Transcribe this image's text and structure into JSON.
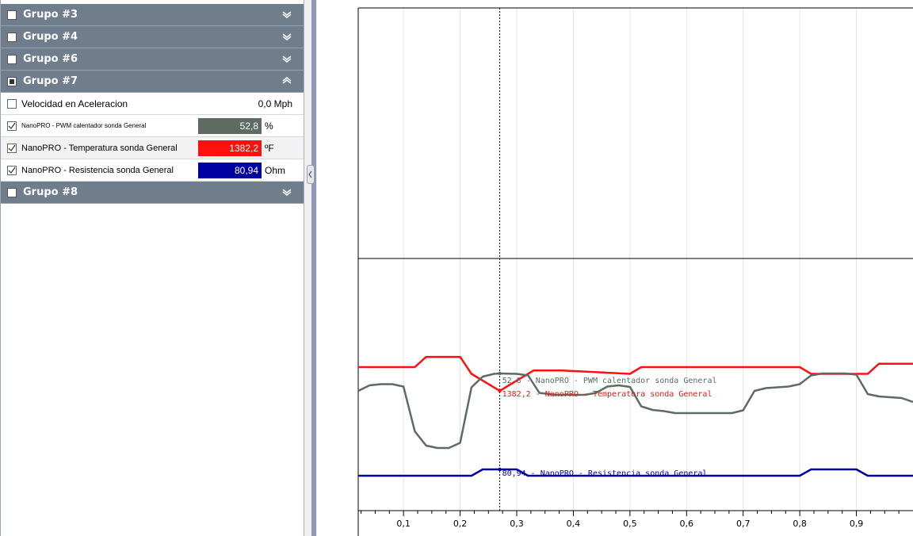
{
  "groups": {
    "g3": "Grupo #3",
    "g4": "Grupo #4",
    "g6": "Grupo #6",
    "g7": "Grupo #7",
    "g8": "Grupo #8"
  },
  "channels": [
    {
      "label": "Velocidad en Aceleracion",
      "value": "0,0",
      "unit": "Mph",
      "checked": false
    },
    {
      "label": "NanoPRO - PWM calentador sonda General",
      "value": "52,8",
      "unit": "%",
      "checked": true,
      "color": "#5d6b63"
    },
    {
      "label": "NanoPRO - Temperatura sonda General",
      "value": "1382,2",
      "unit": "ºF",
      "checked": true,
      "color": "#ff1010"
    },
    {
      "label": "NanoPRO - Resistencia sonda General",
      "value": "80,94",
      "unit": "Ohm",
      "checked": true,
      "color": "#0000a0"
    }
  ],
  "chart_data": {
    "type": "line",
    "x_ticks": [
      "0,1",
      "0,2",
      "0,3",
      "0,4",
      "0,5",
      "0,6",
      "0,7",
      "0,8",
      "0,9"
    ],
    "xlim": [
      0.02,
      1.0
    ],
    "cursor_x": 0.27,
    "series": [
      {
        "name": "NanoPRO - Temperatura sonda General",
        "color": "#ff1010",
        "cursor_label": "1382,2 - NanoPRO - Temperatura sonda General",
        "x": [
          0.02,
          0.12,
          0.14,
          0.2,
          0.22,
          0.27,
          0.33,
          0.38,
          0.5,
          0.52,
          0.7,
          0.72,
          0.8,
          0.82,
          0.92,
          0.94,
          1.0
        ],
        "y": [
          1383.6,
          1383.6,
          1384.2,
          1384.2,
          1383.2,
          1382.2,
          1383.4,
          1383.4,
          1383.2,
          1383.6,
          1383.6,
          1383.6,
          1383.6,
          1383.2,
          1383.2,
          1383.8,
          1383.8
        ]
      },
      {
        "name": "NanoPRO - PWM calentador sonda General",
        "color": "#5d6b63",
        "cursor_label": "52,8 - NanoPRO - PWM calentador sonda General",
        "x": [
          0.02,
          0.04,
          0.06,
          0.08,
          0.1,
          0.12,
          0.14,
          0.16,
          0.18,
          0.2,
          0.22,
          0.24,
          0.26,
          0.27,
          0.3,
          0.32,
          0.34,
          0.37,
          0.4,
          0.42,
          0.44,
          0.46,
          0.48,
          0.5,
          0.52,
          0.54,
          0.56,
          0.58,
          0.6,
          0.62,
          0.64,
          0.66,
          0.68,
          0.7,
          0.72,
          0.74,
          0.76,
          0.78,
          0.8,
          0.82,
          0.84,
          0.86,
          0.88,
          0.9,
          0.92,
          0.94,
          0.96,
          0.98,
          1.0
        ],
        "y": [
          48.4,
          49.8,
          50.1,
          50.1,
          49.5,
          38.2,
          34.6,
          34.0,
          34.0,
          35.3,
          49.3,
          52.0,
          52.7,
          52.8,
          52.7,
          52.3,
          47.9,
          47.4,
          47.4,
          47.4,
          47.9,
          49.5,
          49.8,
          49.4,
          44.5,
          43.6,
          43.3,
          42.8,
          42.8,
          42.8,
          42.8,
          42.8,
          42.8,
          43.5,
          48.4,
          49.1,
          49.3,
          49.5,
          50.1,
          52.3,
          52.8,
          52.8,
          52.8,
          52.5,
          47.6,
          47.0,
          46.8,
          46.6,
          45.6
        ]
      },
      {
        "name": "NanoPRO - Resistencia sonda General",
        "color": "#0000a0",
        "cursor_label": "80,94 - NanoPRO - Resistencia sonda General",
        "x": [
          0.02,
          0.22,
          0.24,
          0.27,
          0.3,
          0.32,
          0.5,
          0.52,
          0.7,
          0.72,
          0.8,
          0.82,
          0.9,
          0.92,
          1.0
        ],
        "y": [
          80.9,
          80.9,
          80.94,
          80.94,
          80.94,
          80.9,
          80.9,
          80.9,
          80.9,
          80.9,
          80.9,
          80.94,
          80.94,
          80.9,
          80.9
        ]
      }
    ]
  }
}
